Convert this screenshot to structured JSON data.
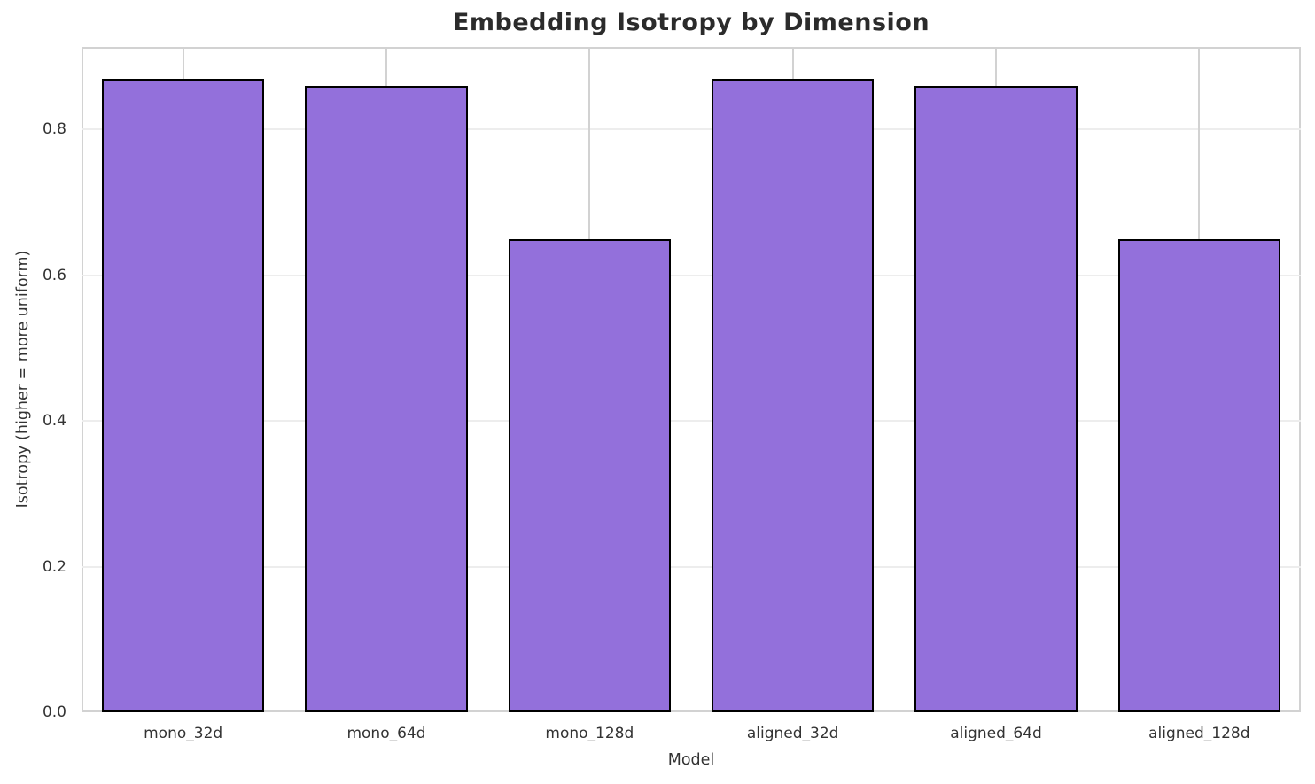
{
  "chart_data": {
    "type": "bar",
    "title": "Embedding Isotropy by Dimension",
    "xlabel": "Model",
    "ylabel": "Isotropy (higher = more uniform)",
    "categories": [
      "mono_32d",
      "mono_64d",
      "mono_128d",
      "aligned_32d",
      "aligned_64d",
      "aligned_128d"
    ],
    "values": [
      0.87,
      0.86,
      0.65,
      0.87,
      0.86,
      0.65
    ],
    "yticks": [
      0.0,
      0.2,
      0.4,
      0.6,
      0.8
    ],
    "ylim": [
      0,
      0.9135
    ],
    "grid": true,
    "legend": false,
    "colors": {
      "bar_fill": "#9370DB",
      "bar_edge": "#000000",
      "hgrid": "#ededed",
      "vgrid": "#d2d2d2",
      "spine": "#d2d2d2",
      "title_text": "#2b2b2b",
      "tick_text": "#333333"
    }
  }
}
